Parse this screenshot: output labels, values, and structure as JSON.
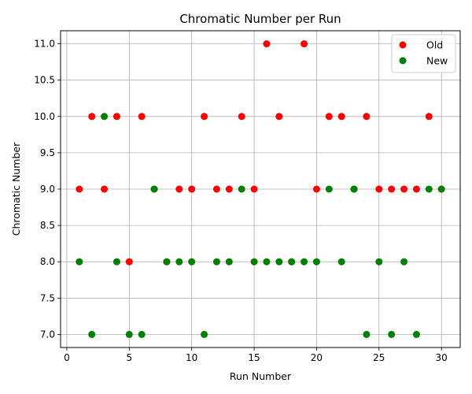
{
  "chart_data": {
    "type": "scatter",
    "title": "Chromatic Number per Run",
    "xlabel": "Run Number",
    "ylabel": "Chromatic Number",
    "xlim": [
      -0.5,
      31.5
    ],
    "ylim": [
      6.82,
      11.18
    ],
    "xticks": [
      0,
      5,
      10,
      15,
      20,
      25,
      30
    ],
    "yticks": [
      7.0,
      7.5,
      8.0,
      8.5,
      9.0,
      9.5,
      10.0,
      10.5,
      11.0
    ],
    "xtick_labels": [
      "0",
      "5",
      "10",
      "15",
      "20",
      "25",
      "30"
    ],
    "ytick_labels": [
      "7.0",
      "7.5",
      "8.0",
      "8.5",
      "9.0",
      "9.5",
      "10.0",
      "10.5",
      "11.0"
    ],
    "grid": true,
    "legend_position": "top-right",
    "series": [
      {
        "name": "Old",
        "color": "#ff0000",
        "x": [
          1,
          2,
          3,
          4,
          5,
          6,
          7,
          8,
          9,
          10,
          11,
          12,
          13,
          14,
          15,
          16,
          17,
          18,
          19,
          20,
          21,
          22,
          23,
          24,
          25,
          26,
          27,
          28,
          29,
          30
        ],
        "y": [
          9,
          10,
          9,
          10,
          8,
          10,
          9,
          8,
          9,
          9,
          10,
          9,
          9,
          10,
          9,
          11,
          10,
          8,
          11,
          9,
          10,
          10,
          9,
          10,
          9,
          9,
          9,
          9,
          10,
          9
        ]
      },
      {
        "name": "New",
        "color": "#008000",
        "x": [
          1,
          2,
          3,
          4,
          5,
          6,
          7,
          8,
          9,
          10,
          11,
          12,
          13,
          14,
          15,
          16,
          17,
          18,
          19,
          20,
          21,
          22,
          23,
          24,
          25,
          26,
          27,
          28,
          29,
          30
        ],
        "y": [
          8,
          7,
          10,
          8,
          7,
          7,
          9,
          8,
          8,
          8,
          7,
          8,
          8,
          9,
          8,
          8,
          8,
          8,
          8,
          8,
          9,
          8,
          9,
          7,
          8,
          7,
          8,
          7,
          9,
          9
        ]
      }
    ]
  }
}
